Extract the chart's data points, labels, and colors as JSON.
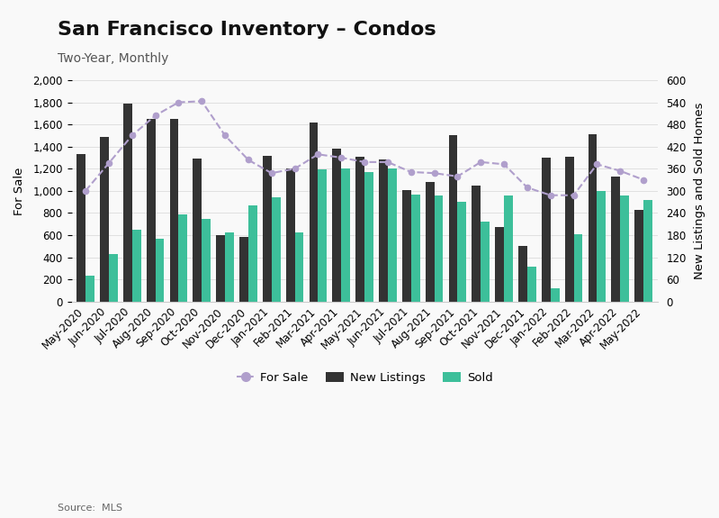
{
  "title": "San Francisco Inventory – Condos",
  "subtitle": "Two-Year, Monthly",
  "source": "Source:  MLS",
  "ylabel_left": "For Sale",
  "ylabel_right": "New Listings and Sold Homes",
  "categories": [
    "May-2020",
    "Jun-2020",
    "Jul-2020",
    "Aug-2020",
    "Sep-2020",
    "Oct-2020",
    "Nov-2020",
    "Dec-2020",
    "Jan-2021",
    "Feb-2021",
    "Mar-2021",
    "Apr-2021",
    "May-2021",
    "Jun-2021",
    "Jul-2021",
    "Aug-2021",
    "Sep-2021",
    "Oct-2021",
    "Nov-2021",
    "Dec-2021",
    "Jan-2022",
    "Feb-2022",
    "Mar-2022",
    "Apr-2022",
    "May-2022"
  ],
  "for_sale": [
    1000,
    1250,
    1500,
    1680,
    1800,
    1810,
    1500,
    1280,
    1160,
    1200,
    1330,
    1300,
    1260,
    1260,
    1170,
    1160,
    1130,
    1260,
    1240,
    1030,
    960,
    960,
    1240,
    1180,
    1100
  ],
  "new_listings": [
    1330,
    1490,
    1790,
    1650,
    1650,
    1290,
    600,
    580,
    1320,
    1200,
    1620,
    1380,
    1310,
    1280,
    1010,
    1080,
    1500,
    1050,
    670,
    500,
    1300,
    1310,
    1510,
    1130,
    830
  ],
  "sold": [
    230,
    430,
    650,
    570,
    790,
    750,
    620,
    870,
    940,
    620,
    1190,
    1200,
    1170,
    1200,
    970,
    960,
    900,
    720,
    960,
    315,
    120,
    610,
    1000,
    960,
    920
  ],
  "for_sale_color": "#b09fcc",
  "new_listings_color": "#333333",
  "sold_color": "#3dbf9a",
  "background_color": "#f9f9f9",
  "ylim_left": [
    0,
    2000
  ],
  "ylim_right": [
    0,
    600
  ],
  "yticks_left": [
    0,
    200,
    400,
    600,
    800,
    1000,
    1200,
    1400,
    1600,
    1800,
    2000
  ],
  "yticks_right": [
    0,
    60,
    120,
    180,
    240,
    300,
    360,
    420,
    480,
    540,
    600
  ],
  "title_fontsize": 16,
  "subtitle_fontsize": 10,
  "tick_fontsize": 8.5,
  "label_fontsize": 9.5
}
